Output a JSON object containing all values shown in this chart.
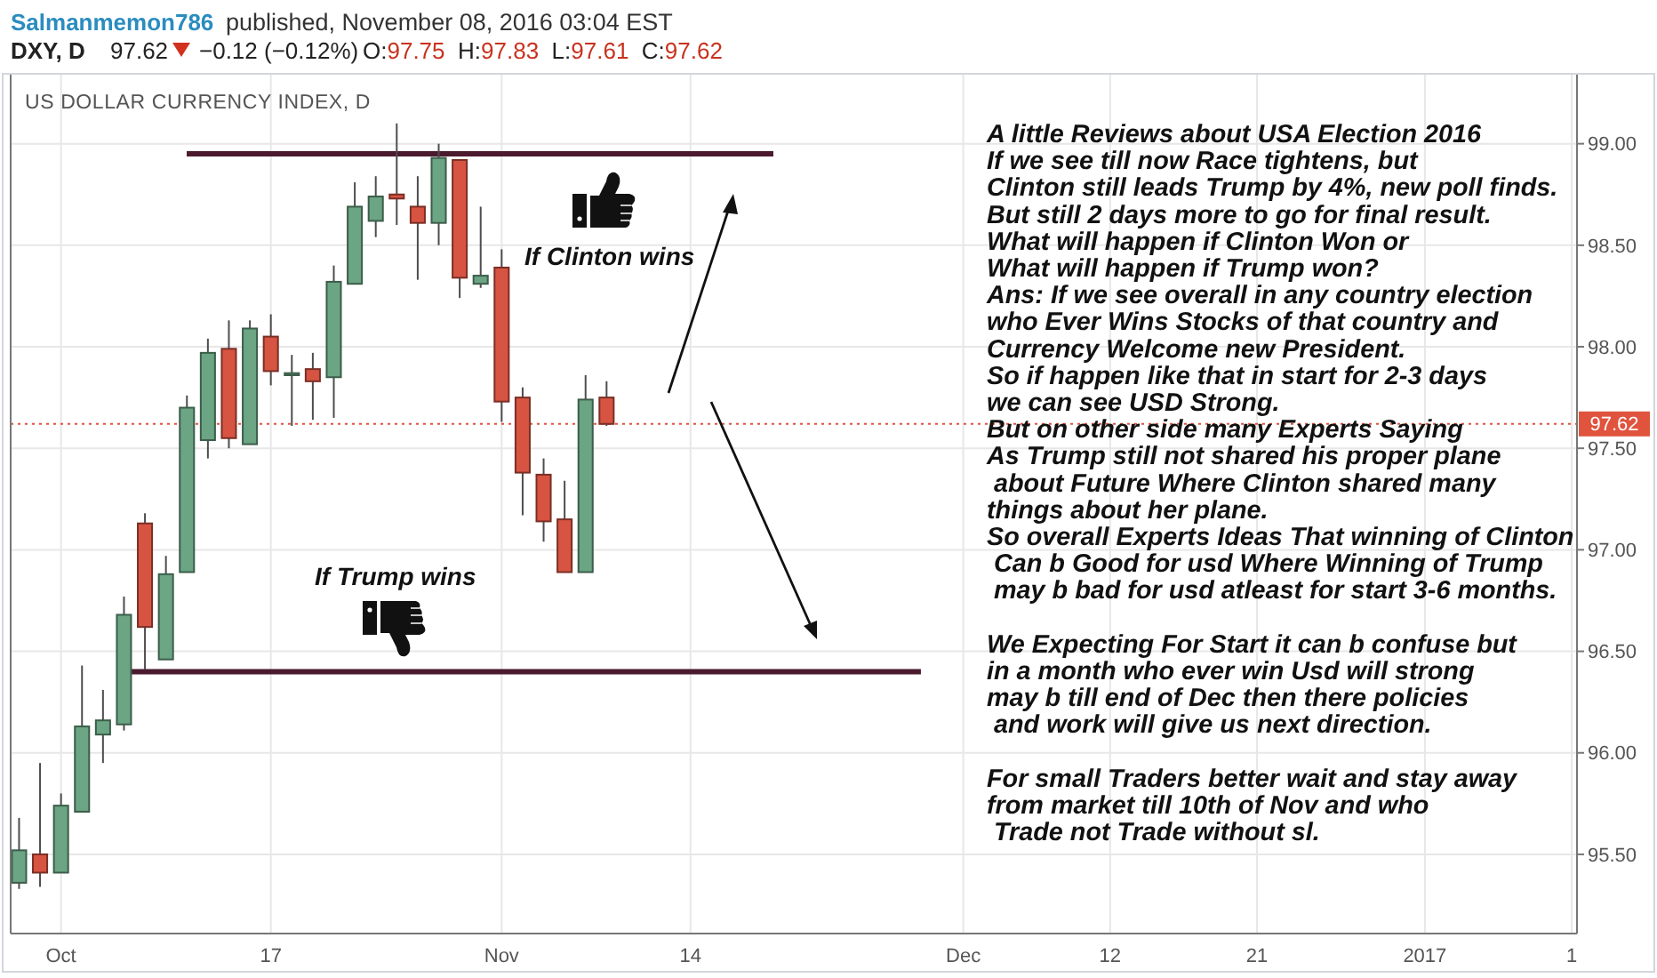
{
  "chart_data": {
    "type": "candlestick",
    "title": "US DOLLAR CURRENCY INDEX, D",
    "annotations": [
      "Salmanmemon786",
      "published, November 08, 2016 03:04 EST",
      "DXY, D",
      "97.62",
      "−0.12 (−0.12%)",
      "O:97.75 H:97.83 L:97.61 C:97.62",
      "If Clinton wins",
      "If Trump wins",
      "A little Reviews about USA Election 2016\nIf we see till now Race tightens, but\nClinton still leads Trump by 4%, new poll finds.\nBut still 2 days more to go for final result.\nWhat will happen if Clinton Won or\nWhat will happen if Trump won?\nAns: If we see overall in any country election\nwho Ever Wins Stocks of that country and\nCurrency Welcome new President.\nSo if happen like that in start for 2-3 days\nwe can see USD Strong.\nBut on other side many Experts Saying\nAs Trump still not shared his proper plane\n about Future Where Clinton shared many\nthings about her plane.\nSo overall Experts Ideas That winning of Clinton\n Can b Good for usd Where Winning of Trump\n may b bad for usd atleast for start 3-6 months.",
      "We Expecting For Start it can b confuse but\nin a month who ever win Usd will strong\nmay b till end of Dec then there policies\n and work will give us next direction.",
      "For small Traders better wait and stay away\nfrom market till 10th of Nov and who\n Trade not Trade without sl."
    ],
    "categories": [
      null,
      null,
      "Oct",
      null,
      null,
      null,
      null,
      null,
      null,
      null,
      null,
      null,
      "17",
      null,
      null,
      null,
      null,
      null,
      null,
      null,
      null,
      null,
      null,
      "Nov",
      null,
      null,
      null,
      null,
      null,
      null,
      null,
      null,
      "14",
      null,
      null,
      null,
      null,
      null,
      null,
      null,
      null,
      null,
      null,
      null,
      null,
      "Dec",
      null,
      null,
      null,
      null,
      null,
      null,
      "12",
      null,
      null,
      null,
      null,
      null,
      null,
      "21",
      null,
      null,
      null,
      null,
      null,
      null,
      null,
      "2017",
      null,
      null,
      null,
      null,
      null,
      null,
      "1"
    ],
    "ohlc": [
      [
        95.36,
        95.68,
        95.33,
        95.52
      ],
      [
        95.5,
        95.95,
        95.34,
        95.41
      ],
      [
        95.41,
        95.8,
        95.41,
        95.74
      ],
      [
        95.71,
        96.43,
        95.71,
        96.13
      ],
      [
        96.09,
        96.31,
        95.95,
        96.16
      ],
      [
        96.14,
        96.77,
        96.11,
        96.68
      ],
      [
        97.13,
        97.18,
        96.41,
        96.62
      ],
      [
        96.46,
        96.97,
        96.46,
        96.88
      ],
      [
        96.89,
        97.76,
        96.89,
        97.7
      ],
      [
        97.54,
        98.04,
        97.45,
        97.97
      ],
      [
        97.99,
        98.13,
        97.5,
        97.55
      ],
      [
        97.52,
        98.13,
        97.52,
        98.09
      ],
      [
        98.05,
        98.16,
        97.81,
        97.88
      ],
      [
        97.86,
        97.96,
        97.61,
        97.87
      ],
      [
        97.89,
        97.97,
        97.64,
        97.83
      ],
      [
        97.85,
        98.4,
        97.65,
        98.32
      ],
      [
        98.31,
        98.81,
        98.31,
        98.69
      ],
      [
        98.62,
        98.84,
        98.54,
        98.74
      ],
      [
        98.75,
        99.1,
        98.6,
        98.73
      ],
      [
        98.69,
        98.84,
        98.33,
        98.61
      ],
      [
        98.61,
        99.0,
        98.5,
        98.93
      ],
      [
        98.92,
        98.92,
        98.24,
        98.34
      ],
      [
        98.31,
        98.69,
        98.29,
        98.35
      ],
      [
        98.39,
        98.48,
        97.63,
        97.73
      ],
      [
        97.75,
        97.8,
        97.17,
        97.38
      ],
      [
        97.37,
        97.45,
        97.04,
        97.14
      ],
      [
        97.15,
        97.34,
        96.89,
        96.89
      ],
      [
        96.89,
        97.86,
        96.89,
        97.74
      ],
      [
        97.75,
        97.83,
        97.61,
        97.62
      ],
      null,
      null,
      null,
      null,
      null,
      null,
      null,
      null,
      null,
      null,
      null,
      null,
      null,
      null,
      null,
      null,
      null,
      null,
      null,
      null,
      null,
      null,
      null,
      null,
      null,
      null,
      null,
      null,
      null,
      null,
      null,
      null,
      null,
      null,
      null,
      null,
      null,
      null,
      null,
      null,
      null,
      null,
      null,
      null,
      null,
      null
    ],
    "colors": [
      "#6ba583",
      "#d75442",
      "#6ba583",
      "#6ba583",
      "#6ba583",
      "#6ba583",
      "#d75442",
      "#6ba583",
      "#6ba583",
      "#6ba583",
      "#d75442",
      "#6ba583",
      "#d75442",
      "#6ba583",
      "#d75442",
      "#6ba583",
      "#6ba583",
      "#6ba583",
      "#d75442",
      "#d75442",
      "#6ba583",
      "#d75442",
      "#6ba583",
      "#d75442",
      "#d75442",
      "#d75442",
      "#d75442",
      "#6ba583",
      "#d75442",
      null,
      null,
      null,
      null,
      null,
      null,
      null,
      null,
      null,
      null,
      null,
      null,
      null,
      null,
      null,
      null,
      null,
      null,
      null,
      null,
      null,
      null,
      null,
      null,
      null,
      null,
      null,
      null,
      null,
      null,
      null,
      null,
      null,
      null,
      null,
      null,
      null,
      null,
      null,
      null,
      null,
      null,
      null,
      null,
      null,
      null
    ],
    "ylim": [
      95.11,
      99.34
    ],
    "yticks": [
      {
        "value": 95.5,
        "label": "95.50"
      },
      {
        "value": 96,
        "label": "96.00"
      },
      {
        "value": 96.5,
        "label": "96.50"
      },
      {
        "value": 97,
        "label": "97.00"
      },
      {
        "value": 97.5,
        "label": "97.50"
      },
      {
        "value": 98,
        "label": "98.00"
      },
      {
        "value": 98.5,
        "label": "98.50"
      },
      {
        "value": 99,
        "label": "99.00"
      }
    ],
    "grid": true,
    "ref_lines": [
      {
        "axis": "y",
        "value": 98.95,
        "color": "#4b1a2f"
      },
      {
        "axis": "y",
        "value": 96.4,
        "color": "#4b1a2f"
      },
      {
        "axis": "y",
        "value": 97.62,
        "label": "97.62",
        "color": "#e0533d",
        "line_style": "dotted"
      }
    ]
  }
}
